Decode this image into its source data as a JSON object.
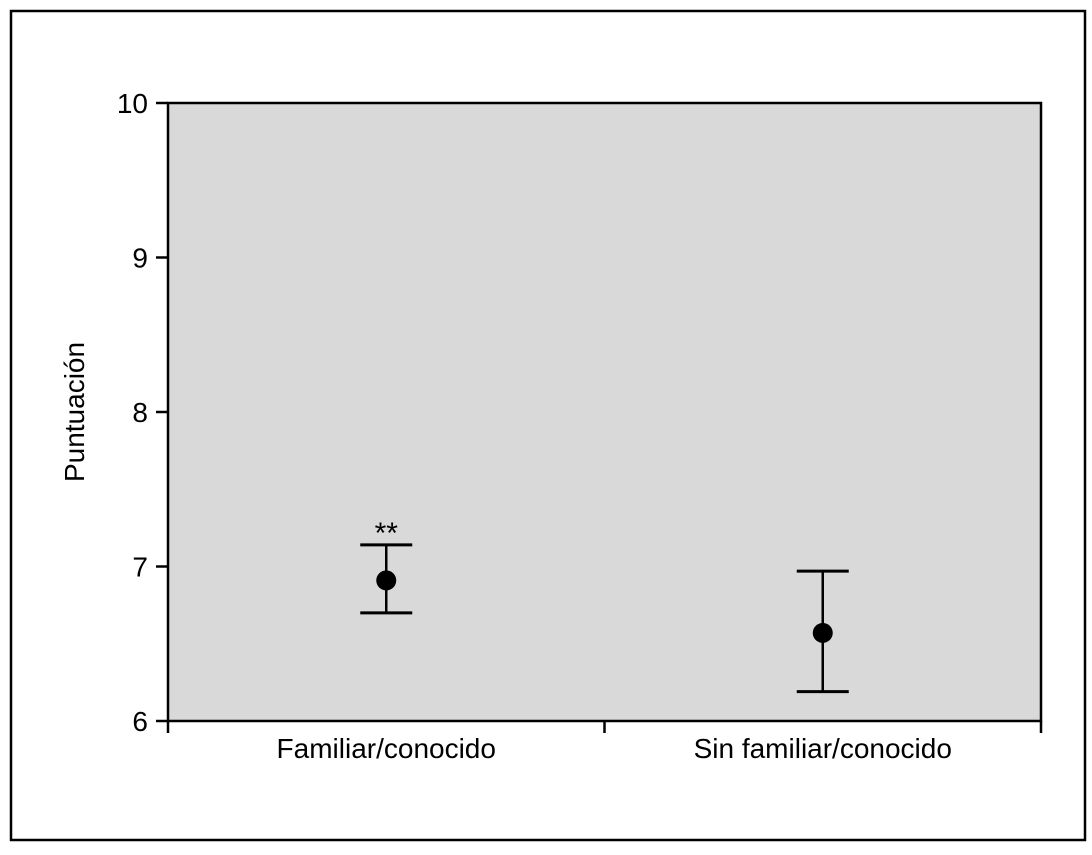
{
  "chart_data": {
    "type": "scatter",
    "subtype": "point-with-error-bars",
    "ylabel": "Puntuación",
    "xlabel": "",
    "ylim": [
      6,
      10
    ],
    "yticks": [
      "6",
      "7",
      "8",
      "9",
      "10"
    ],
    "categories": [
      "Familiar/conocido",
      "Sin familiar/conocido"
    ],
    "values": [
      6.91,
      6.57
    ],
    "error_low": [
      6.7,
      6.19
    ],
    "error_high": [
      7.14,
      6.97
    ],
    "annotations": [
      {
        "category": "Familiar/conocido",
        "text": "**"
      }
    ],
    "grid": false,
    "legend": "none"
  },
  "colors": {
    "plot_background": "#d9d9d9",
    "marker": "#000000",
    "frame": "#000000"
  }
}
